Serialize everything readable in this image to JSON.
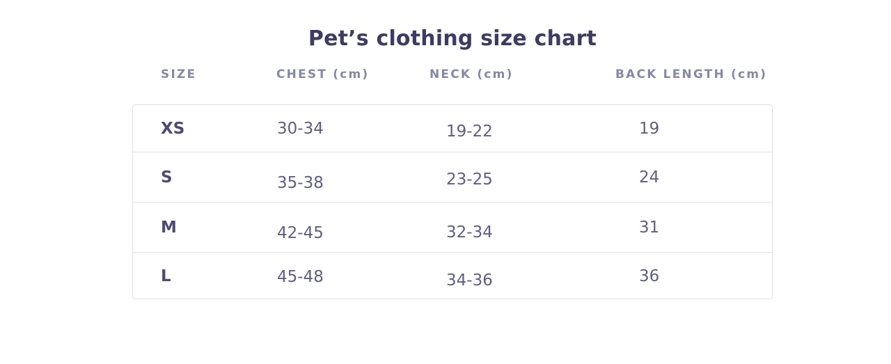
{
  "chart_data": {
    "type": "table",
    "title": "Pet’s clothing size chart",
    "columns": [
      "SIZE",
      "CHEST (cm)",
      "NECK (cm)",
      "BACK LENGTH (cm)"
    ],
    "rows": [
      {
        "size": "XS",
        "chest": "30-34",
        "neck": "19-22",
        "back_length": "19"
      },
      {
        "size": "S",
        "chest": "35-38",
        "neck": "23-25",
        "back_length": "24"
      },
      {
        "size": "M",
        "chest": "42-45",
        "neck": "32-34",
        "back_length": "31"
      },
      {
        "size": "L",
        "chest": "45-48",
        "neck": "34-36",
        "back_length": "36"
      }
    ]
  },
  "colors": {
    "background": "#ffffff",
    "title_text": "#3e3b63",
    "header_text": "#8588a6",
    "size_label_text": "#4d4b73",
    "value_text": "#5f5e81",
    "table_border": "#dee0e7",
    "row_divider": "#e2e3e9"
  }
}
